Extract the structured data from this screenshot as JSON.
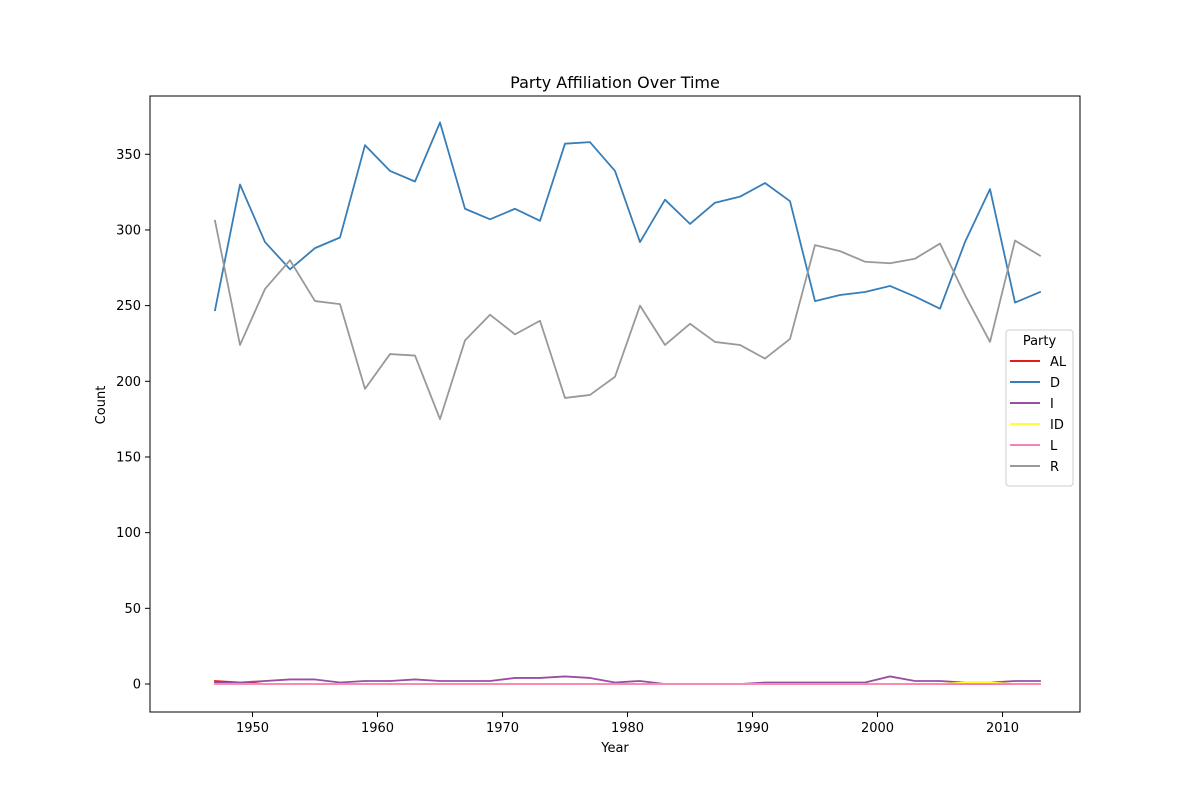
{
  "chart_data": {
    "type": "line",
    "title": "Party Affiliation Over Time",
    "xlabel": "Year",
    "ylabel": "Count",
    "xlim": [
      1941.8,
      2016.2
    ],
    "ylim": [
      -18.5,
      388.5
    ],
    "xticks": [
      1950,
      1960,
      1970,
      1980,
      1990,
      2000,
      2010
    ],
    "yticks": [
      0,
      50,
      100,
      150,
      200,
      250,
      300,
      350
    ],
    "grid": false,
    "legend": {
      "title": "Party",
      "placement": "center-right"
    },
    "x": [
      1947,
      1949,
      1951,
      1953,
      1955,
      1957,
      1959,
      1961,
      1963,
      1965,
      1967,
      1969,
      1971,
      1973,
      1975,
      1977,
      1979,
      1981,
      1983,
      1985,
      1987,
      1989,
      1991,
      1993,
      1995,
      1997,
      1999,
      2001,
      2003,
      2005,
      2007,
      2009,
      2011,
      2013
    ],
    "series": [
      {
        "name": "AL",
        "color": "#e41a1c",
        "values": [
          2,
          1,
          0,
          0,
          0,
          0,
          0,
          0,
          0,
          0,
          0,
          0,
          0,
          0,
          0,
          0,
          0,
          0,
          0,
          0,
          0,
          0,
          0,
          0,
          0,
          0,
          0,
          0,
          0,
          0,
          0,
          0,
          0,
          0
        ]
      },
      {
        "name": "D",
        "color": "#377eb8",
        "values": [
          247,
          330,
          292,
          274,
          288,
          295,
          356,
          339,
          332,
          371,
          314,
          307,
          314,
          306,
          357,
          358,
          339,
          292,
          320,
          304,
          318,
          322,
          331,
          319,
          253,
          257,
          259,
          263,
          256,
          248,
          292,
          327,
          252,
          259
        ]
      },
      {
        "name": "I",
        "color": "#984ea3",
        "values": [
          1,
          1,
          2,
          3,
          3,
          1,
          2,
          2,
          3,
          2,
          2,
          2,
          4,
          4,
          5,
          4,
          1,
          2,
          0,
          0,
          0,
          0,
          1,
          1,
          1,
          1,
          1,
          5,
          2,
          2,
          1,
          1,
          2,
          2
        ]
      },
      {
        "name": "ID",
        "color": "#ffff33",
        "values": [
          0,
          0,
          0,
          0,
          0,
          0,
          0,
          0,
          0,
          0,
          0,
          0,
          0,
          0,
          0,
          0,
          0,
          0,
          0,
          0,
          0,
          0,
          0,
          0,
          0,
          0,
          0,
          0,
          0,
          0,
          1,
          1,
          0,
          0
        ]
      },
      {
        "name": "L",
        "color": "#f781bf",
        "values": [
          0,
          0,
          0,
          0,
          0,
          0,
          0,
          0,
          0,
          0,
          0,
          0,
          0,
          0,
          0,
          0,
          0,
          0,
          0,
          0,
          0,
          0,
          0,
          0,
          0,
          0,
          0,
          0,
          0,
          0,
          0,
          0,
          0,
          0
        ]
      },
      {
        "name": "R",
        "color": "#999999",
        "values": [
          306,
          224,
          261,
          280,
          253,
          251,
          195,
          218,
          217,
          175,
          227,
          244,
          231,
          240,
          189,
          191,
          203,
          250,
          224,
          238,
          226,
          224,
          215,
          228,
          290,
          286,
          279,
          278,
          281,
          291,
          257,
          226,
          293,
          283
        ]
      }
    ]
  }
}
